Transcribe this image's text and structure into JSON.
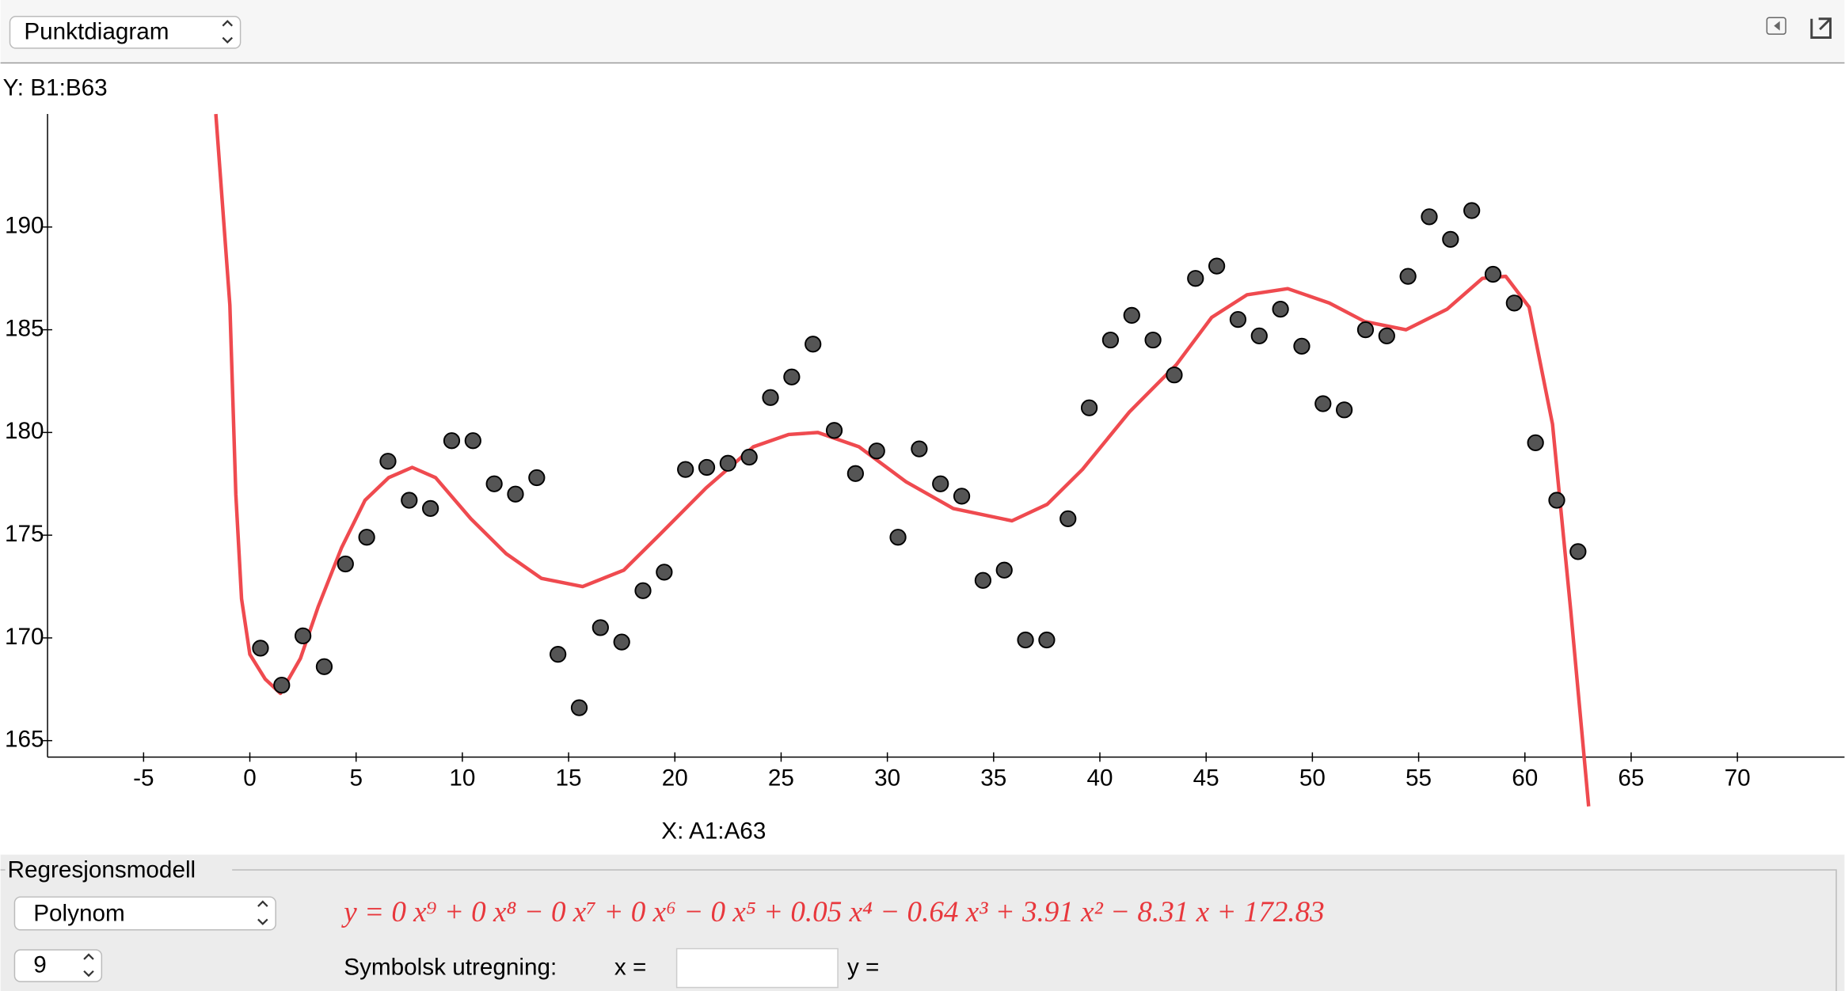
{
  "ui": {
    "view_menu": "Punktdiagram",
    "panel_title": "Regresjonsmodell",
    "model_menu": "Polynom",
    "degree_menu": "9",
    "equation": "y = 0 x⁹ + 0 x⁸ − 0 x⁷ + 0 x⁶ − 0 x⁵ + 0.05 x⁴ − 0.64 x³ + 3.91 x² − 8.31 x + 172.83",
    "symbolic_label": "Symbolsk utregning:",
    "x_eq": "x =",
    "y_eq": "y ="
  },
  "chart_data": {
    "type": "scatter",
    "y_label": "Y:  B1:B63",
    "x_label": "X:  A1:A63",
    "xlim": [
      -9.52,
      75.04
    ],
    "ylim": [
      164.2,
      195.5
    ],
    "xticks": [
      -5,
      0,
      5,
      10,
      15,
      20,
      25,
      30,
      35,
      40,
      45,
      50,
      55,
      60,
      65,
      70
    ],
    "yticks": [
      165,
      170,
      175,
      180,
      185,
      190
    ],
    "point_color": "#555555",
    "points": {
      "x": [
        0.5,
        1.5,
        2.5,
        3.5,
        4.5,
        5.5,
        6.5,
        7.5,
        8.5,
        9.5,
        10.5,
        11.5,
        12.5,
        13.5,
        14.5,
        15.5,
        16.5,
        17.5,
        18.5,
        19.5,
        20.5,
        21.5,
        22.5,
        23.5,
        24.5,
        25.5,
        26.5,
        27.5,
        28.5,
        29.5,
        30.5,
        31.5,
        32.5,
        33.5,
        34.5,
        35.5,
        36.5,
        37.5,
        38.5,
        39.5,
        40.5,
        41.5,
        42.5,
        43.5,
        44.5,
        45.5,
        46.5,
        47.5,
        48.5,
        49.5,
        50.5,
        51.5,
        52.5,
        53.5,
        54.5,
        55.5,
        56.5,
        57.5,
        58.5,
        59.5,
        60.5,
        61.5,
        62.5
      ],
      "y": [
        169.5,
        167.7,
        170.1,
        168.6,
        173.6,
        174.9,
        178.6,
        176.7,
        176.3,
        179.6,
        179.6,
        177.5,
        177.0,
        177.8,
        169.2,
        166.6,
        170.5,
        169.8,
        172.3,
        173.2,
        178.2,
        178.3,
        178.5,
        178.8,
        181.7,
        182.7,
        184.3,
        180.1,
        178.0,
        179.1,
        174.9,
        179.2,
        177.5,
        176.9,
        172.8,
        173.3,
        169.9,
        169.9,
        175.8,
        181.2,
        184.5,
        185.7,
        184.5,
        182.8,
        187.5,
        188.1,
        185.5,
        184.7,
        186.0,
        184.2,
        181.4,
        181.1,
        185.0,
        184.7,
        187.6,
        190.5,
        189.4,
        190.8,
        187.7,
        186.3,
        179.5,
        176.7,
        174.2
      ]
    },
    "curve": {
      "color": "#ef4a4f",
      "x": [
        -1.6,
        -0.94,
        -0.66,
        -0.39,
        0,
        0.72,
        1.44,
        2.38,
        3.21,
        4.32,
        5.42,
        6.53,
        7.64,
        8.74,
        10.4,
        12.06,
        13.72,
        15.66,
        17.6,
        19.26,
        21.47,
        23.69,
        25.35,
        26.73,
        28.67,
        30.88,
        33.1,
        35.86,
        37.52,
        39.18,
        41.39,
        43.6,
        45.26,
        46.92,
        48.84,
        50.8,
        52.46,
        54.4,
        56.34,
        58.0,
        59.1,
        60.2,
        61.3,
        62.16,
        63.0
      ],
      "y": [
        195.5,
        186.2,
        177.0,
        171.9,
        169.2,
        168.0,
        167.3,
        169.0,
        171.5,
        174.4,
        176.7,
        177.8,
        178.3,
        177.8,
        175.8,
        174.1,
        172.9,
        172.5,
        173.3,
        175.0,
        177.3,
        179.3,
        179.9,
        180.0,
        179.3,
        177.6,
        176.3,
        175.7,
        176.5,
        178.2,
        181.0,
        183.3,
        185.6,
        186.7,
        187.0,
        186.3,
        185.4,
        185.0,
        186.0,
        187.5,
        187.6,
        186.1,
        180.4,
        171.3,
        161.8
      ]
    }
  }
}
